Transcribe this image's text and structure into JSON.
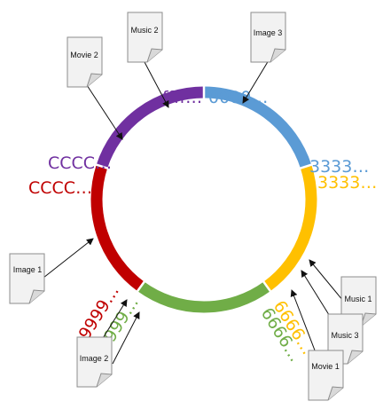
{
  "colors": {
    "blue": "#5b9bd5",
    "gold": "#ffc000",
    "green": "#70ad47",
    "red": "#c00000",
    "purple": "#7030a0",
    "doc_fill": "#f2f2f2",
    "doc_stroke": "#8c8c8c"
  },
  "ring_segments": [
    {
      "name": "blue",
      "color": "#5b9bd5"
    },
    {
      "name": "gold",
      "color": "#ffc000"
    },
    {
      "name": "green",
      "color": "#70ad47"
    },
    {
      "name": "red",
      "color": "#c00000"
    },
    {
      "name": "purple",
      "color": "#7030a0"
    }
  ],
  "hash_labels": [
    {
      "text": "0000…",
      "color": "#5b9bd5"
    },
    {
      "text": "3333…",
      "color": "#5b9bd5"
    },
    {
      "text": "3333…",
      "color": "#ffc000"
    },
    {
      "text": "6666…",
      "color": "#ffc000"
    },
    {
      "text": "6666…",
      "color": "#70ad47"
    },
    {
      "text": "9999…",
      "color": "#70ad47"
    },
    {
      "text": "9999…",
      "color": "#c00000"
    },
    {
      "text": "CCCC…",
      "color": "#c00000"
    },
    {
      "text": "CCCC…",
      "color": "#7030a0"
    },
    {
      "text": "ffff…",
      "color": "#7030a0"
    }
  ],
  "documents": [
    {
      "label": "Music 2"
    },
    {
      "label": "Image 3"
    },
    {
      "label": "Movie 2"
    },
    {
      "label": "Image 1"
    },
    {
      "label": "Image 2"
    },
    {
      "label": "Music 1"
    },
    {
      "label": "Music 3"
    },
    {
      "label": "Movie 1"
    }
  ]
}
